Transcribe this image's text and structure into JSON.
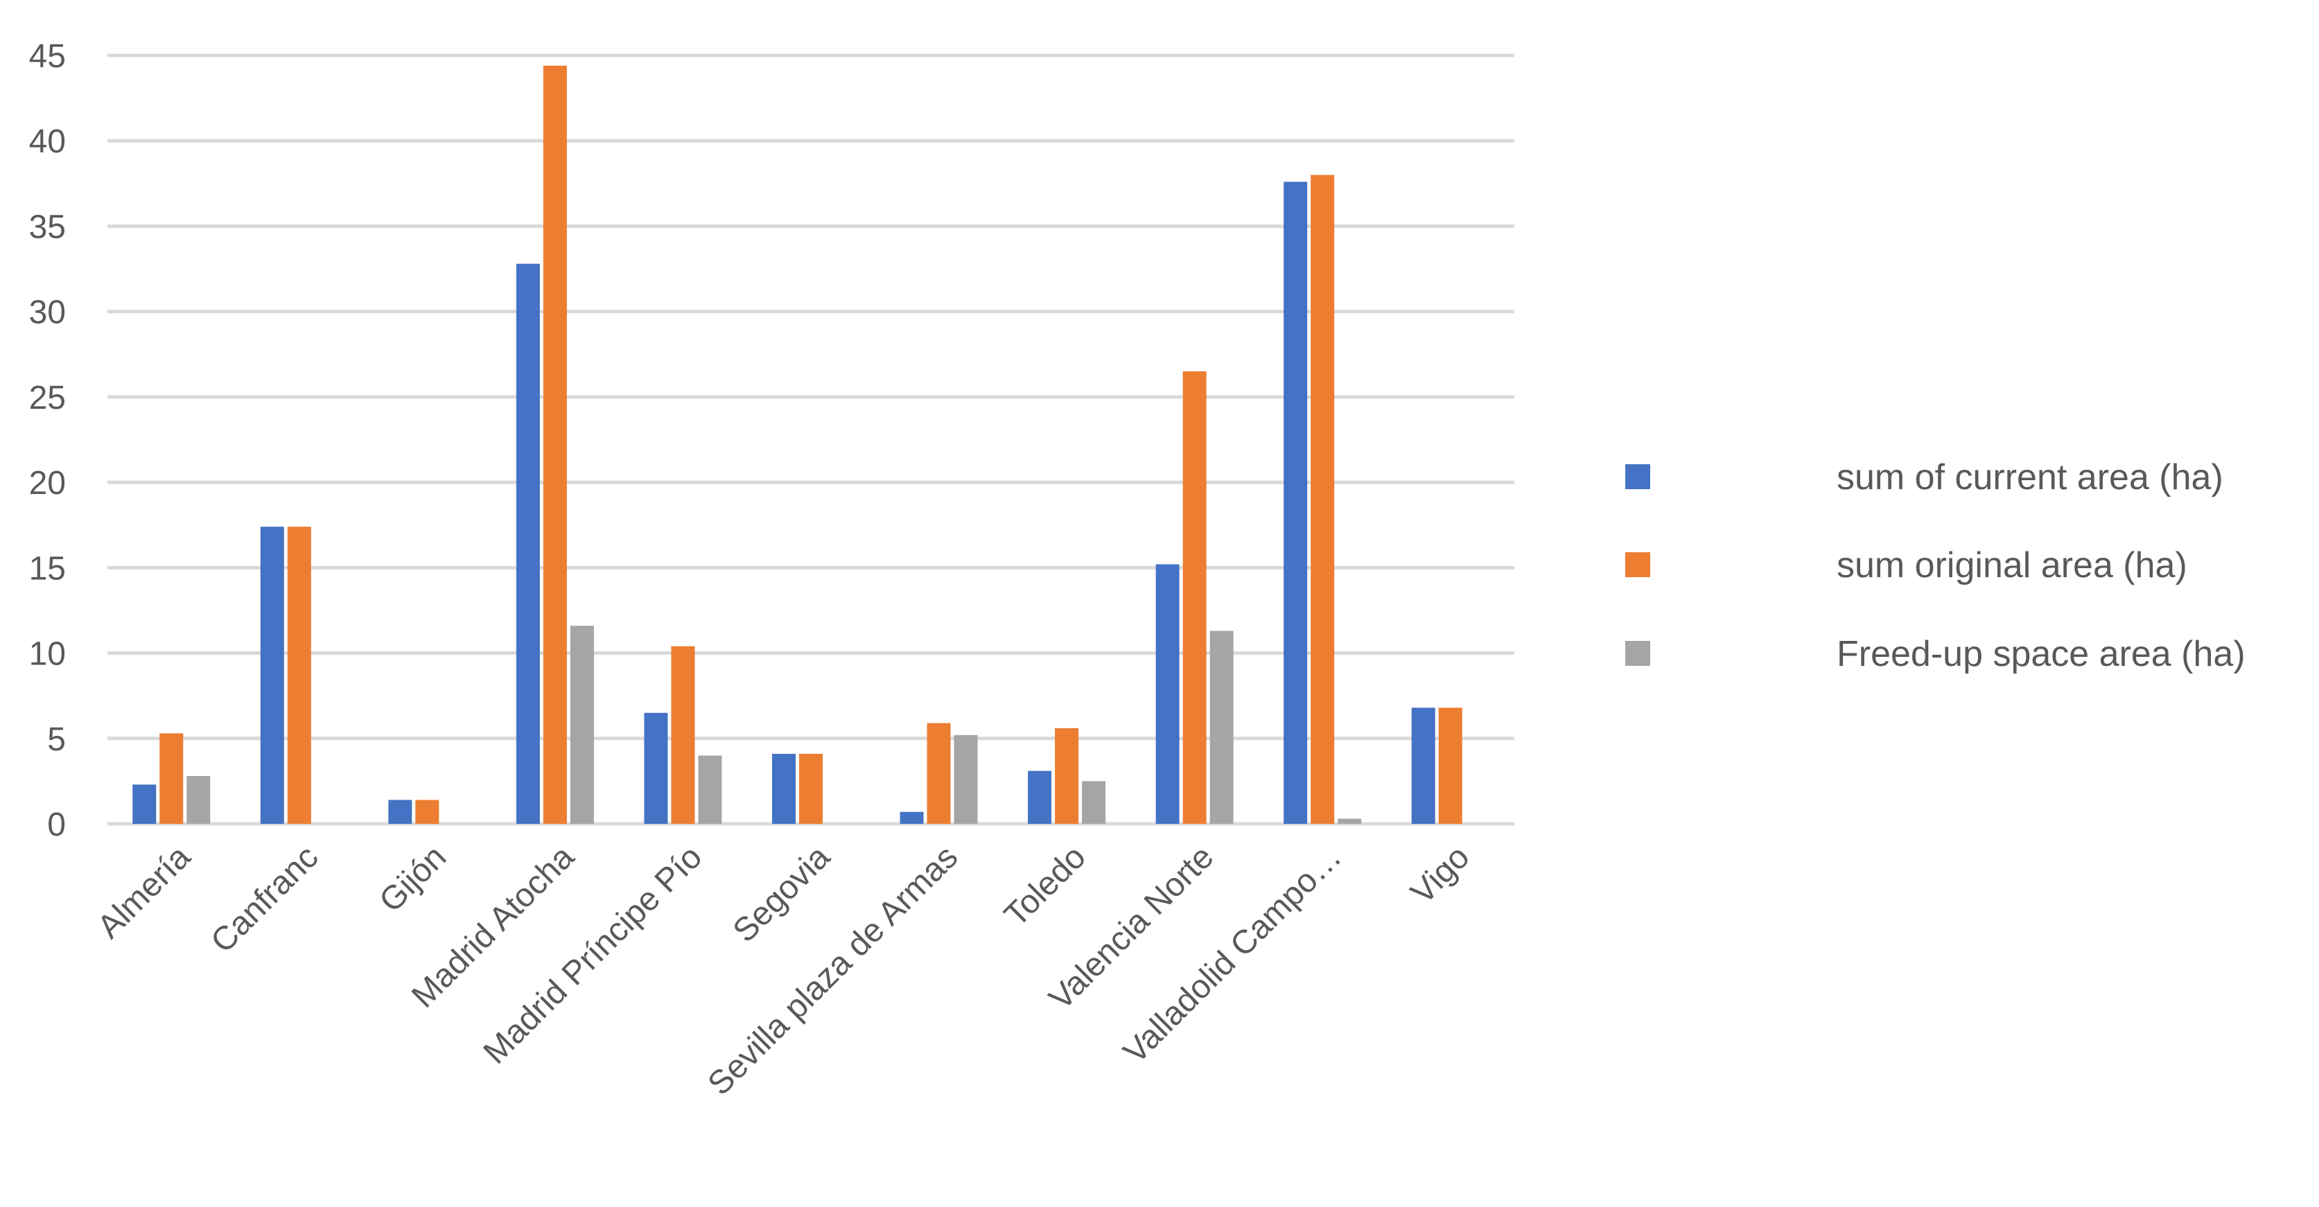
{
  "chart_data": {
    "type": "bar",
    "categories": [
      "Almería",
      "Canfranc",
      "Gijón",
      "Madrid Atocha",
      "Madrid Príncipe Pío",
      "Segovia",
      "Sevilla plaza de Armas",
      "Toledo",
      "Valencia Norte",
      "Valladolid Campo…",
      "Vigo"
    ],
    "series": [
      {
        "name": "sum of current area (ha)",
        "color": "#4472c4",
        "values": [
          2.3,
          17.4,
          1.4,
          32.8,
          6.5,
          4.1,
          0.7,
          3.1,
          15.2,
          37.6,
          6.8
        ]
      },
      {
        "name": "sum original area (ha)",
        "color": "#ed7d31",
        "values": [
          5.3,
          17.4,
          1.4,
          44.4,
          10.4,
          4.1,
          5.9,
          5.6,
          26.5,
          38.0,
          6.8
        ]
      },
      {
        "name": "Freed-up space area (ha)",
        "color": "#a5a5a5",
        "values": [
          2.8,
          0,
          0,
          11.6,
          4.0,
          0,
          5.2,
          2.5,
          11.3,
          0.3,
          0
        ]
      }
    ],
    "y_ticks": [
      "0",
      "5",
      "10",
      "15",
      "20",
      "25",
      "30",
      "35",
      "40",
      "45"
    ],
    "ylim": [
      0,
      45
    ],
    "grid": true,
    "legend_position": "right",
    "title": "",
    "xlabel": "",
    "ylabel": ""
  }
}
